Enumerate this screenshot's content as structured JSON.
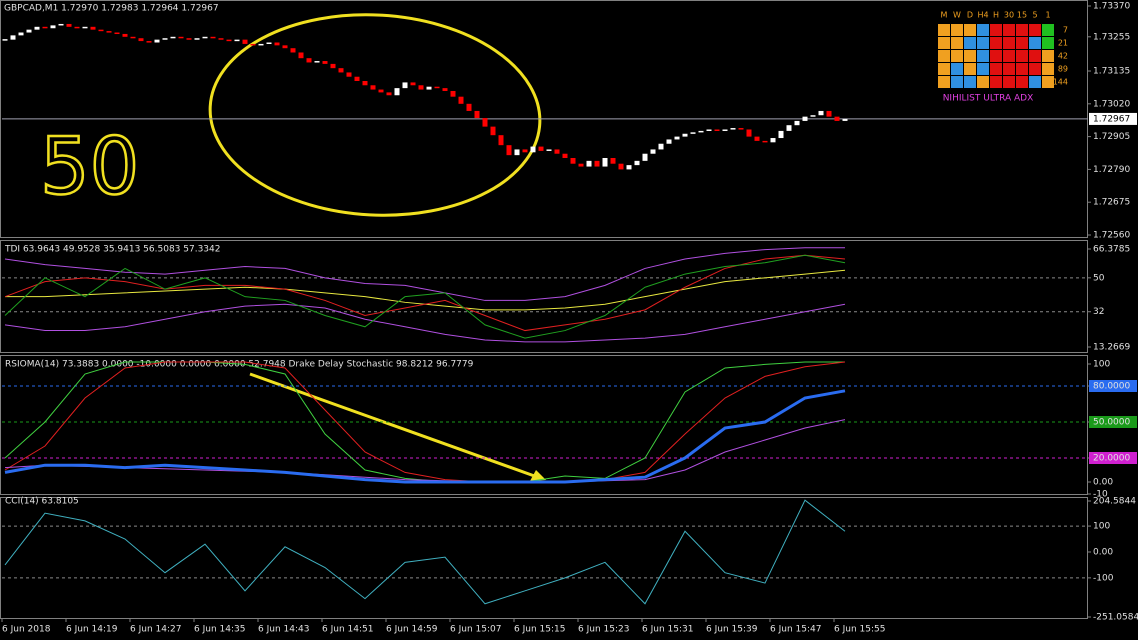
{
  "window": {
    "symbol_info": "GBPCAD,M1  1.72970 1.72983 1.72964 1.72967",
    "annotation": "50",
    "time_labels": [
      "6 Jun 2018",
      "6 Jun 14:19",
      "6 Jun 14:27",
      "6 Jun 14:35",
      "6 Jun 14:43",
      "6 Jun 14:51",
      "6 Jun 14:59",
      "6 Jun 15:07",
      "6 Jun 15:15",
      "6 Jun 15:23",
      "6 Jun 15:31",
      "6 Jun 15:39",
      "6 Jun 15:47",
      "6 Jun 15:55"
    ],
    "widget": {
      "columns": [
        "M",
        "W",
        "D",
        "H4",
        "H",
        "30",
        "15",
        "5",
        "1"
      ],
      "rows": [
        "7",
        "21",
        "42",
        "89",
        "144"
      ],
      "title": "NIHILIST ULTRA ADX"
    }
  },
  "panels": [
    {
      "name": "price",
      "ylim": [
        1.7256,
        1.7337
      ],
      "axis_labels": [
        {
          "value": 1.7337,
          "label": "1.73370"
        },
        {
          "value": 1.73255,
          "label": "1.73255"
        },
        {
          "value": 1.73135,
          "label": "1.73135"
        },
        {
          "value": 1.7302,
          "label": "1.73020"
        },
        {
          "value": 1.72905,
          "label": "1.72905"
        },
        {
          "value": 1.7279,
          "label": "1.72790"
        },
        {
          "value": 1.72675,
          "label": "1.72675"
        },
        {
          "value": 1.7256,
          "label": "1.72560"
        }
      ],
      "current_price": {
        "value": 1.72967,
        "label": "1.72967"
      },
      "closes": [
        1.73245,
        1.7326,
        1.7327,
        1.7328,
        1.7329,
        1.73285,
        1.73295,
        1.733,
        1.7329,
        1.73285,
        1.7329,
        1.7328,
        1.73275,
        1.7327,
        1.73265,
        1.73255,
        1.7325,
        1.7324,
        1.73235,
        1.73245,
        1.7325,
        1.73255,
        1.7325,
        1.73245,
        1.7325,
        1.73255,
        1.7325,
        1.73245,
        1.7324,
        1.73245,
        1.7323,
        1.73225,
        1.7323,
        1.73235,
        1.73225,
        1.73215,
        1.732,
        1.7318,
        1.73165,
        1.7317,
        1.7316,
        1.73145,
        1.7313,
        1.73115,
        1.731,
        1.73085,
        1.7307,
        1.7306,
        1.7305,
        1.73075,
        1.73095,
        1.73085,
        1.7307,
        1.7308,
        1.73075,
        1.73065,
        1.73045,
        1.7302,
        1.72995,
        1.7297,
        1.7294,
        1.7291,
        1.72875,
        1.7284,
        1.7286,
        1.7285,
        1.7287,
        1.72855,
        1.7286,
        1.72845,
        1.7283,
        1.7281,
        1.728,
        1.7282,
        1.728,
        1.7283,
        1.7281,
        1.7279,
        1.72805,
        1.7282,
        1.72845,
        1.7286,
        1.7288,
        1.72895,
        1.72905,
        1.72915,
        1.7292,
        1.72925,
        1.7293,
        1.72925,
        1.7293,
        1.72935,
        1.7293,
        1.72905,
        1.7289,
        1.72885,
        1.729,
        1.72925,
        1.72945,
        1.7296,
        1.72975,
        1.7298,
        1.72995,
        1.72975,
        1.7296,
        1.72967
      ]
    },
    {
      "name": "TDI",
      "label": "TDI 63.9643 49.9528 35.9413 56.5083 57.3342",
      "ylim": [
        13.2669,
        66.3785
      ],
      "axis_labels": [
        66.3785,
        50,
        32,
        13.2669
      ],
      "levels": [
        50,
        32
      ],
      "series": [
        {
          "color": "#b050e0",
          "values": [
            60,
            57,
            55,
            53,
            52,
            54,
            56,
            55,
            50,
            47,
            46,
            42,
            38,
            38,
            40,
            46,
            55,
            60,
            63,
            65,
            66,
            66
          ]
        },
        {
          "color": "#b050e0",
          "values": [
            25,
            22,
            22,
            24,
            28,
            32,
            35,
            36,
            34,
            28,
            24,
            20,
            17,
            16,
            16,
            17,
            18,
            20,
            24,
            28,
            32,
            36
          ]
        },
        {
          "color": "#e8e840",
          "values": [
            40,
            40,
            41,
            42,
            43,
            44,
            45,
            44,
            42,
            40,
            37,
            35,
            33,
            33,
            34,
            36,
            40,
            44,
            48,
            50,
            52,
            54
          ]
        },
        {
          "color": "#e02020",
          "values": [
            40,
            48,
            50,
            48,
            44,
            46,
            46,
            44,
            38,
            30,
            34,
            38,
            30,
            22,
            25,
            28,
            33,
            45,
            55,
            60,
            62,
            60
          ]
        },
        {
          "color": "#20a020",
          "values": [
            30,
            50,
            40,
            55,
            44,
            50,
            40,
            38,
            30,
            24,
            40,
            42,
            25,
            18,
            22,
            30,
            45,
            52,
            56,
            58,
            62,
            58
          ]
        }
      ]
    },
    {
      "name": "RSIOMA",
      "label": "RSIOMA(14) 73.3883 0.0000 -10.0000 0.0000 0.0000 52.7948   Drake Delay Stochastic 98.8212 96.7779",
      "ylim": [
        -10,
        100
      ],
      "axis_labels": [
        100,
        {
          "value": 80,
          "label": "80.0000"
        },
        {
          "value": 50,
          "label": "50.0000"
        },
        {
          "value": 20,
          "label": "20.0000"
        },
        {
          "value": 0,
          "label": "0.00"
        },
        -10
      ],
      "series": [
        {
          "color": "#40d040",
          "values": [
            20,
            50,
            90,
            100,
            100,
            100,
            98,
            90,
            40,
            10,
            3,
            0,
            0,
            0,
            5,
            3,
            20,
            75,
            95,
            98,
            100,
            100
          ]
        },
        {
          "color": "#e02020",
          "values": [
            10,
            30,
            70,
            95,
            100,
            100,
            100,
            95,
            60,
            25,
            8,
            2,
            0,
            0,
            0,
            2,
            8,
            40,
            70,
            88,
            96,
            100
          ]
        },
        {
          "color": "#b050e0",
          "values": [
            12,
            14,
            13,
            12,
            11,
            10,
            9,
            8,
            6,
            4,
            2,
            1,
            0,
            0,
            0,
            1,
            2,
            10,
            25,
            35,
            45,
            52
          ]
        },
        {
          "color": "#2a6cf0",
          "values": [
            8,
            14,
            14,
            12,
            14,
            12,
            10,
            8,
            5,
            2,
            0,
            0,
            0,
            0,
            0,
            2,
            4,
            20,
            45,
            50,
            70,
            76
          ]
        }
      ]
    },
    {
      "name": "CCI",
      "label": "CCI(14) 63.8105",
      "ylim": [
        -251.0584,
        204.5844
      ],
      "axis_labels": [
        204.5844,
        100,
        {
          "value": 0,
          "label": "0.00"
        },
        -100,
        -251.0584
      ],
      "levels": [
        100,
        -100
      ],
      "series": [
        {
          "color": "#40b0c0",
          "values": [
            -50,
            150,
            120,
            50,
            -80,
            30,
            -150,
            20,
            -60,
            -180,
            -40,
            -20,
            -200,
            -150,
            -100,
            -40,
            -200,
            80,
            -80,
            -120,
            200,
            80
          ]
        }
      ]
    }
  ]
}
